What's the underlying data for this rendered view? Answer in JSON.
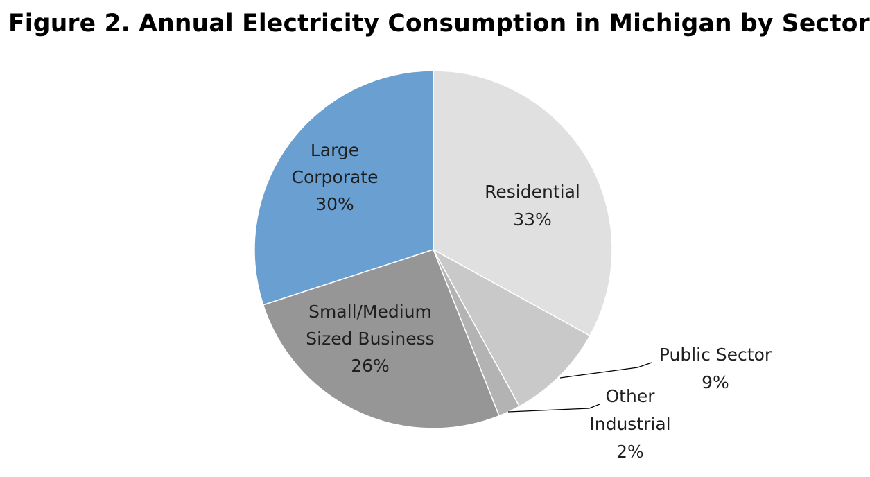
{
  "chart_data": {
    "type": "pie",
    "title": "Figure 2. Annual Electricity Consumption in Michigan by Sector",
    "slices": [
      {
        "id": "residential",
        "label_lines": [
          "Residential",
          "33%"
        ],
        "value": 33,
        "color": "#e0e0e0"
      },
      {
        "id": "public-sector",
        "label_lines": [
          "Public Sector",
          "9%"
        ],
        "value": 9,
        "color": "#c9c9c9"
      },
      {
        "id": "other-industrial",
        "label_lines": [
          "Other",
          "Industrial",
          "2%"
        ],
        "value": 2,
        "color": "#b3b3b3"
      },
      {
        "id": "small-medium-business",
        "label_lines": [
          "Small/Medium",
          "Sized Business",
          "26%"
        ],
        "value": 26,
        "color": "#969696"
      },
      {
        "id": "large-corporate",
        "label_lines": [
          "Large",
          "Corporate",
          "30%"
        ],
        "value": 30,
        "color": "#6a9fd1"
      }
    ]
  }
}
